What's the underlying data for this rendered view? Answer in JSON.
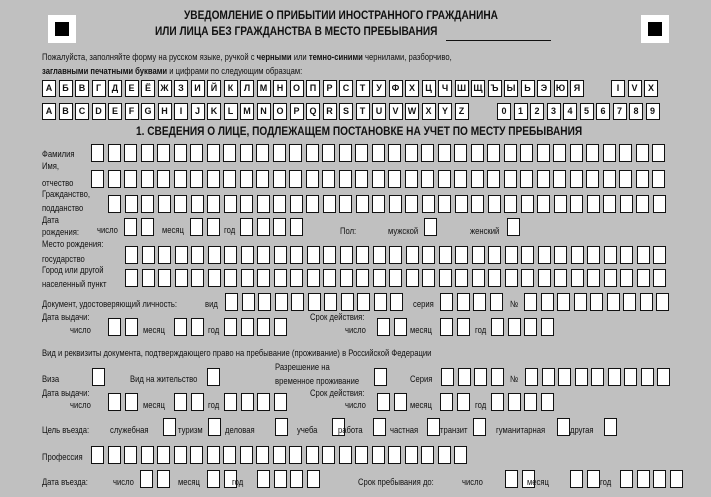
{
  "header": {
    "title_line1": "УВЕДОМЛЕНИЕ О ПРИБЫТИИ ИНОСТРАННОГО ГРАЖДАНИНА",
    "title_line2": "ИЛИ ЛИЦА БЕЗ ГРАЖДАНСТВА В МЕСТО ПРЕБЫВАНИЯ"
  },
  "instructions": {
    "p1": "Пожалуйста, заполняйте форму на русском языке, ручкой с ",
    "b1": "черными",
    "p2": " или ",
    "b2": "темно-синими",
    "p3": " чернилами, разборчиво,",
    "b3": "заглавными печатными буквами",
    "p4": " и цифрами по следующим образцам:"
  },
  "samples": {
    "cyrillic": [
      "А",
      "Б",
      "В",
      "Г",
      "Д",
      "Е",
      "Ё",
      "Ж",
      "З",
      "И",
      "Й",
      "К",
      "Л",
      "М",
      "Н",
      "О",
      "П",
      "Р",
      "С",
      "Т",
      "У",
      "Ф",
      "Х",
      "Ц",
      "Ч",
      "Ш",
      "Щ",
      "Ъ",
      "Ы",
      "Ь",
      "Э",
      "Ю",
      "Я"
    ],
    "roman": [
      "I",
      "V",
      "X"
    ],
    "latin": [
      "A",
      "B",
      "C",
      "D",
      "E",
      "F",
      "G",
      "H",
      "I",
      "J",
      "K",
      "L",
      "M",
      "N",
      "O",
      "P",
      "Q",
      "R",
      "S",
      "T",
      "U",
      "V",
      "W",
      "X",
      "Y",
      "Z"
    ],
    "digits": [
      "0",
      "1",
      "2",
      "3",
      "4",
      "5",
      "6",
      "7",
      "8",
      "9"
    ]
  },
  "section1": {
    "title": "1. СВЕДЕНИЯ О ЛИЦЕ, ПОДЛЕЖАЩЕМ ПОСТАНОВКЕ НА УЧЕТ ПО МЕСТУ ПРЕБЫВАНИЯ"
  },
  "labels": {
    "surname": "Фамилия",
    "name1": "Имя,",
    "name2": "отчество",
    "citizenship1": "Гражданство,",
    "citizenship2": "подданство",
    "dob1": "Дата",
    "dob2": "рождения:",
    "day": "число",
    "month": "месяц",
    "year": "год",
    "sex": "Пол:",
    "male": "мужской",
    "female": "женский",
    "birthplace": "Место рождения:",
    "state": "государство",
    "city1": "Город или другой",
    "city2": "населенный пункт",
    "id_doc": "Документ, удостоверяющий личность:",
    "kind": "вид",
    "series": "серия",
    "number": "№",
    "issued": "Дата выдачи:",
    "valid": "Срок действия:",
    "right_doc": "Вид и реквизиты документа, подтверждающего право на пребывание (проживание) в Российской Федерации",
    "visa": "Виза",
    "residence": "Вид на жительство",
    "trp1": "Разрешение на",
    "trp2": "временное проживание",
    "series2": "Серия",
    "purpose": "Цель въезда:",
    "purposes": [
      "служебная",
      "туризм",
      "деловая",
      "учеба",
      "работа",
      "частная",
      "транзит",
      "гуманитарная",
      "другая"
    ],
    "profession": "Профессия",
    "entry": "Дата въезда:",
    "stay_until": "Срок пребывания до:"
  }
}
